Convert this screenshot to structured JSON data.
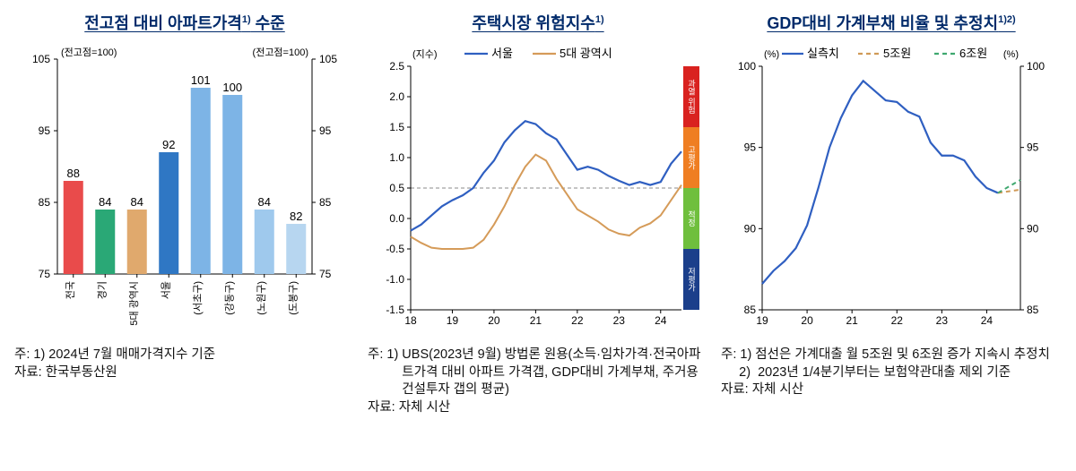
{
  "panel1": {
    "title": "전고점 대비 아파트가격<sup>1)</sup> 수준",
    "footnote1_key": "주: 1) ",
    "footnote1": "2024년 7월 매매가격지수 기준",
    "source_key": "자료: ",
    "source": "한국부동산원",
    "chart": {
      "type": "bar",
      "ylim": [
        75,
        105
      ],
      "ytick_step": 10,
      "y_left_label": "(전고점=100)",
      "y_right_label": "(전고점=100)",
      "categories": [
        "전국",
        "경기",
        "5대 광역시",
        "서울",
        "(서초구)",
        "(강동구)",
        "(노원구)",
        "(도봉구)"
      ],
      "values": [
        88,
        84,
        84,
        92,
        101,
        100,
        84,
        82
      ],
      "colors": [
        "#e94b4b",
        "#2aa876",
        "#e0a96d",
        "#2f77c4",
        "#7db4e6",
        "#7db4e6",
        "#9fc9ed",
        "#b7d6f0"
      ],
      "axis_color": "#000000",
      "grid_color": "#e0e0e0",
      "tick_font": 12,
      "value_font": 13,
      "cat_font": 11,
      "bar_width": 0.62
    }
  },
  "panel2": {
    "title": "주택시장 위험지수<sup>1)</sup>",
    "footnote1_key": "주: 1) ",
    "footnote1": "UBS(2023년 9월) 방법론 원용(소득·임차가격·전국아파트가격 대비 아파트 가격갭, GDP대비 가계부채, 주거용 건설투자 갭의 평균)",
    "source_key": "자료: ",
    "source": "자체 시산",
    "chart": {
      "type": "line",
      "y_left_label": "(지수)",
      "ylim": [
        -1.5,
        2.5
      ],
      "ytick_step": 0.5,
      "xlim": [
        18,
        24.5
      ],
      "xticks": [
        18,
        19,
        20,
        21,
        22,
        23,
        24
      ],
      "ref_line": 0.5,
      "series": [
        {
          "name": "서울",
          "color": "#2f5fc1",
          "width": 2.2,
          "points": [
            [
              18.0,
              -0.2
            ],
            [
              18.25,
              -0.1
            ],
            [
              18.5,
              0.05
            ],
            [
              18.75,
              0.2
            ],
            [
              19.0,
              0.3
            ],
            [
              19.25,
              0.38
            ],
            [
              19.5,
              0.5
            ],
            [
              19.75,
              0.75
            ],
            [
              20.0,
              0.95
            ],
            [
              20.25,
              1.25
            ],
            [
              20.5,
              1.45
            ],
            [
              20.75,
              1.6
            ],
            [
              21.0,
              1.55
            ],
            [
              21.25,
              1.4
            ],
            [
              21.5,
              1.3
            ],
            [
              21.75,
              1.05
            ],
            [
              22.0,
              0.8
            ],
            [
              22.25,
              0.85
            ],
            [
              22.5,
              0.8
            ],
            [
              22.75,
              0.7
            ],
            [
              23.0,
              0.62
            ],
            [
              23.25,
              0.55
            ],
            [
              23.5,
              0.6
            ],
            [
              23.75,
              0.55
            ],
            [
              24.0,
              0.6
            ],
            [
              24.25,
              0.9
            ],
            [
              24.5,
              1.1
            ]
          ]
        },
        {
          "name": "5대 광역시",
          "color": "#d59b59",
          "width": 2.0,
          "points": [
            [
              18.0,
              -0.3
            ],
            [
              18.25,
              -0.4
            ],
            [
              18.5,
              -0.48
            ],
            [
              18.75,
              -0.5
            ],
            [
              19.0,
              -0.5
            ],
            [
              19.25,
              -0.5
            ],
            [
              19.5,
              -0.48
            ],
            [
              19.75,
              -0.35
            ],
            [
              20.0,
              -0.1
            ],
            [
              20.25,
              0.2
            ],
            [
              20.5,
              0.55
            ],
            [
              20.75,
              0.85
            ],
            [
              21.0,
              1.05
            ],
            [
              21.25,
              0.95
            ],
            [
              21.5,
              0.65
            ],
            [
              21.75,
              0.4
            ],
            [
              22.0,
              0.15
            ],
            [
              22.25,
              0.05
            ],
            [
              22.5,
              -0.05
            ],
            [
              22.75,
              -0.18
            ],
            [
              23.0,
              -0.25
            ],
            [
              23.25,
              -0.28
            ],
            [
              23.5,
              -0.15
            ],
            [
              23.75,
              -0.08
            ],
            [
              24.0,
              0.05
            ],
            [
              24.25,
              0.3
            ],
            [
              24.5,
              0.55
            ]
          ]
        }
      ],
      "risk_bands": [
        {
          "from": 1.5,
          "to": 2.5,
          "color": "#d9221f",
          "label": "과열 위험"
        },
        {
          "from": 0.5,
          "to": 1.5,
          "color": "#ef7e22",
          "label": "고평가"
        },
        {
          "from": -0.5,
          "to": 0.5,
          "color": "#6fbf3d",
          "label": "적정"
        },
        {
          "from": -1.5,
          "to": -0.5,
          "color": "#1b3f8b",
          "label": "저평가"
        }
      ],
      "axis_color": "#000000",
      "grid_color": "#e8e8e8",
      "tick_font": 12,
      "legend_font": 13,
      "band_label_font": 9
    }
  },
  "panel3": {
    "title": "GDP대비 가계부채 비율 및 추정치<sup>1)2)</sup>",
    "footnote1_key": "주: 1) ",
    "footnote1": "점선은 가계대출 월 5조원 및 6조원 증가 지속시 추정치",
    "footnote2_key": "     2) ",
    "footnote2": "2023년 1/4분기부터는 보험약관대출 제외 기준",
    "source_key": "자료: ",
    "source": "자체 시산",
    "chart": {
      "type": "line",
      "y_left_label": "(%)",
      "y_right_label": "(%)",
      "ylim": [
        85,
        100
      ],
      "ytick_step": 5,
      "xlim": [
        19,
        24.75
      ],
      "xticks": [
        19,
        20,
        21,
        22,
        23,
        24
      ],
      "series": [
        {
          "name": "실측치",
          "color": "#2f5fc1",
          "width": 2.2,
          "dash": "",
          "points": [
            [
              19.0,
              86.6
            ],
            [
              19.25,
              87.4
            ],
            [
              19.5,
              88.0
            ],
            [
              19.75,
              88.8
            ],
            [
              20.0,
              90.2
            ],
            [
              20.25,
              92.5
            ],
            [
              20.5,
              95.0
            ],
            [
              20.75,
              96.8
            ],
            [
              21.0,
              98.2
            ],
            [
              21.25,
              99.1
            ],
            [
              21.5,
              98.5
            ],
            [
              21.75,
              97.9
            ],
            [
              22.0,
              97.8
            ],
            [
              22.25,
              97.2
            ],
            [
              22.5,
              96.9
            ],
            [
              22.75,
              95.3
            ],
            [
              23.0,
              94.5
            ],
            [
              23.25,
              94.5
            ],
            [
              23.5,
              94.2
            ],
            [
              23.75,
              93.2
            ],
            [
              24.0,
              92.5
            ],
            [
              24.25,
              92.2
            ]
          ]
        },
        {
          "name": "5조원",
          "color": "#d09a57",
          "width": 2.0,
          "dash": "5 4",
          "points": [
            [
              24.25,
              92.2
            ],
            [
              24.5,
              92.3
            ],
            [
              24.75,
              92.4
            ]
          ]
        },
        {
          "name": "6조원",
          "color": "#3fa86f",
          "width": 2.0,
          "dash": "5 4",
          "points": [
            [
              24.25,
              92.2
            ],
            [
              24.5,
              92.6
            ],
            [
              24.75,
              93.0
            ]
          ]
        }
      ],
      "axis_color": "#000000",
      "tick_font": 12,
      "legend_font": 13
    }
  }
}
